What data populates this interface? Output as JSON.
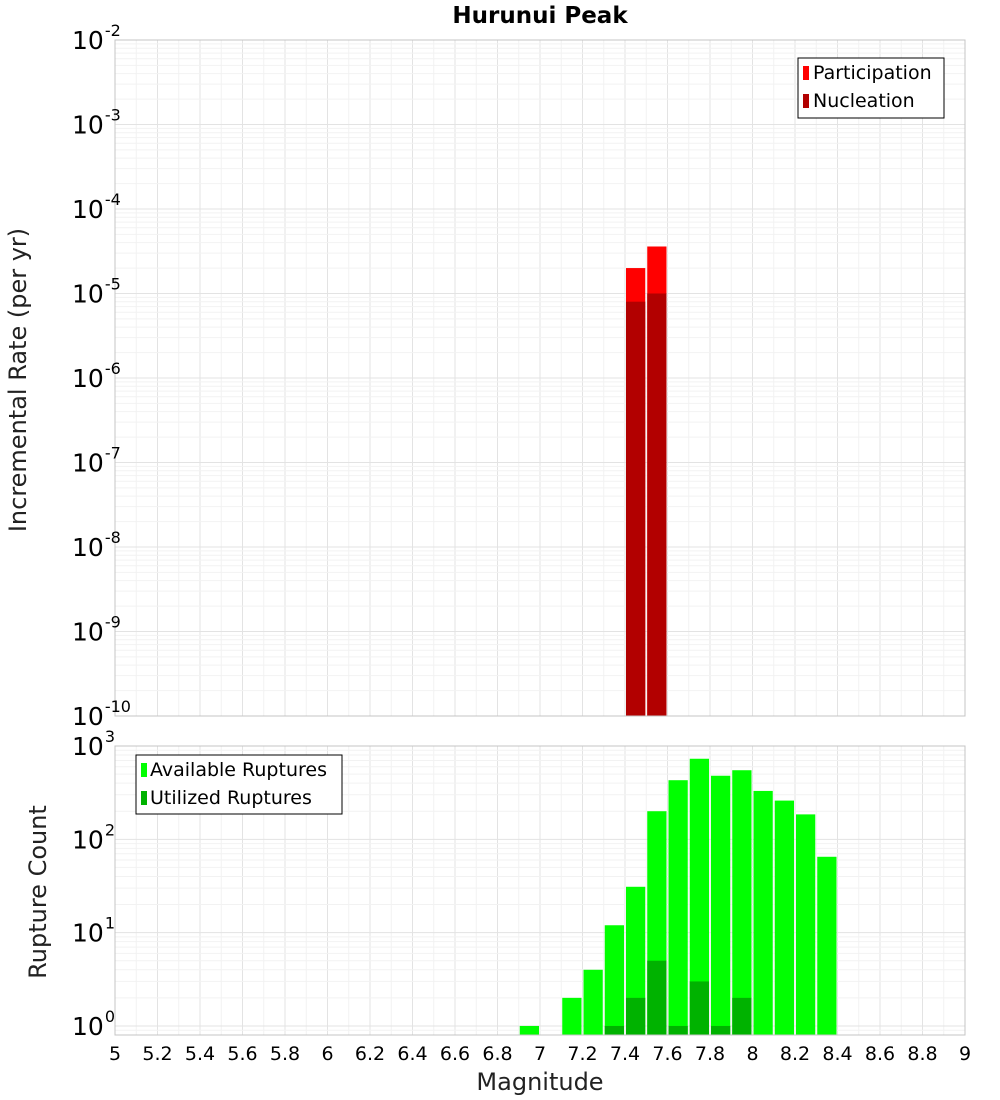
{
  "chart_data": [
    {
      "type": "bar",
      "title": "Hurunui Peak",
      "xlabel": "",
      "ylabel": "Incremental Rate (per yr)",
      "xlim": [
        5,
        9
      ],
      "ylim_exp": [
        -10,
        -2
      ],
      "y_scale": "log",
      "grid": true,
      "legend": "top-right",
      "bar_width": 0.1,
      "y_ticks": [
        {
          "base": "10",
          "exp": "-2"
        },
        {
          "base": "10",
          "exp": "-3"
        },
        {
          "base": "10",
          "exp": "-4"
        },
        {
          "base": "10",
          "exp": "-5"
        },
        {
          "base": "10",
          "exp": "-6"
        },
        {
          "base": "10",
          "exp": "-7"
        },
        {
          "base": "10",
          "exp": "-8"
        },
        {
          "base": "10",
          "exp": "-9"
        },
        {
          "base": "10",
          "exp": "-10"
        }
      ],
      "series": [
        {
          "name": "Participation",
          "color": "#ff0000",
          "x": [
            7.45,
            7.55
          ],
          "values": [
            2e-05,
            3.6e-05
          ]
        },
        {
          "name": "Nucleation",
          "color": "#b20000",
          "x": [
            7.45,
            7.55
          ],
          "values": [
            8e-06,
            1e-05
          ]
        }
      ]
    },
    {
      "type": "bar",
      "title": "",
      "xlabel": "Magnitude",
      "ylabel": "Rupture Count",
      "xlim": [
        5,
        9
      ],
      "ylim": [
        0.8,
        1000
      ],
      "y_scale": "log",
      "grid": true,
      "legend": "top-left",
      "bar_width": 0.1,
      "x_ticks": [
        "5",
        "5.2",
        "5.4",
        "5.6",
        "5.8",
        "6",
        "6.2",
        "6.4",
        "6.6",
        "6.8",
        "7",
        "7.2",
        "7.4",
        "7.6",
        "7.8",
        "8",
        "8.2",
        "8.4",
        "8.6",
        "8.8",
        "9"
      ],
      "y_ticks": [
        {
          "base": "10",
          "exp": "3"
        },
        {
          "base": "10",
          "exp": "2"
        },
        {
          "base": "10",
          "exp": "1"
        },
        {
          "base": "10",
          "exp": "0"
        }
      ],
      "series": [
        {
          "name": "Available Ruptures",
          "color": "#00ff00",
          "x": [
            6.95,
            7.15,
            7.25,
            7.35,
            7.45,
            7.55,
            7.65,
            7.75,
            7.85,
            7.95,
            8.05,
            8.15,
            8.25,
            8.35
          ],
          "values": [
            1,
            2,
            4,
            12,
            31,
            200,
            430,
            730,
            480,
            550,
            330,
            260,
            185,
            65
          ]
        },
        {
          "name": "Utilized Ruptures",
          "color": "#00b200",
          "x": [
            7.35,
            7.45,
            7.55,
            7.65,
            7.75,
            7.85,
            7.95
          ],
          "values": [
            1,
            2,
            5,
            1,
            3,
            1,
            2
          ]
        }
      ]
    }
  ]
}
